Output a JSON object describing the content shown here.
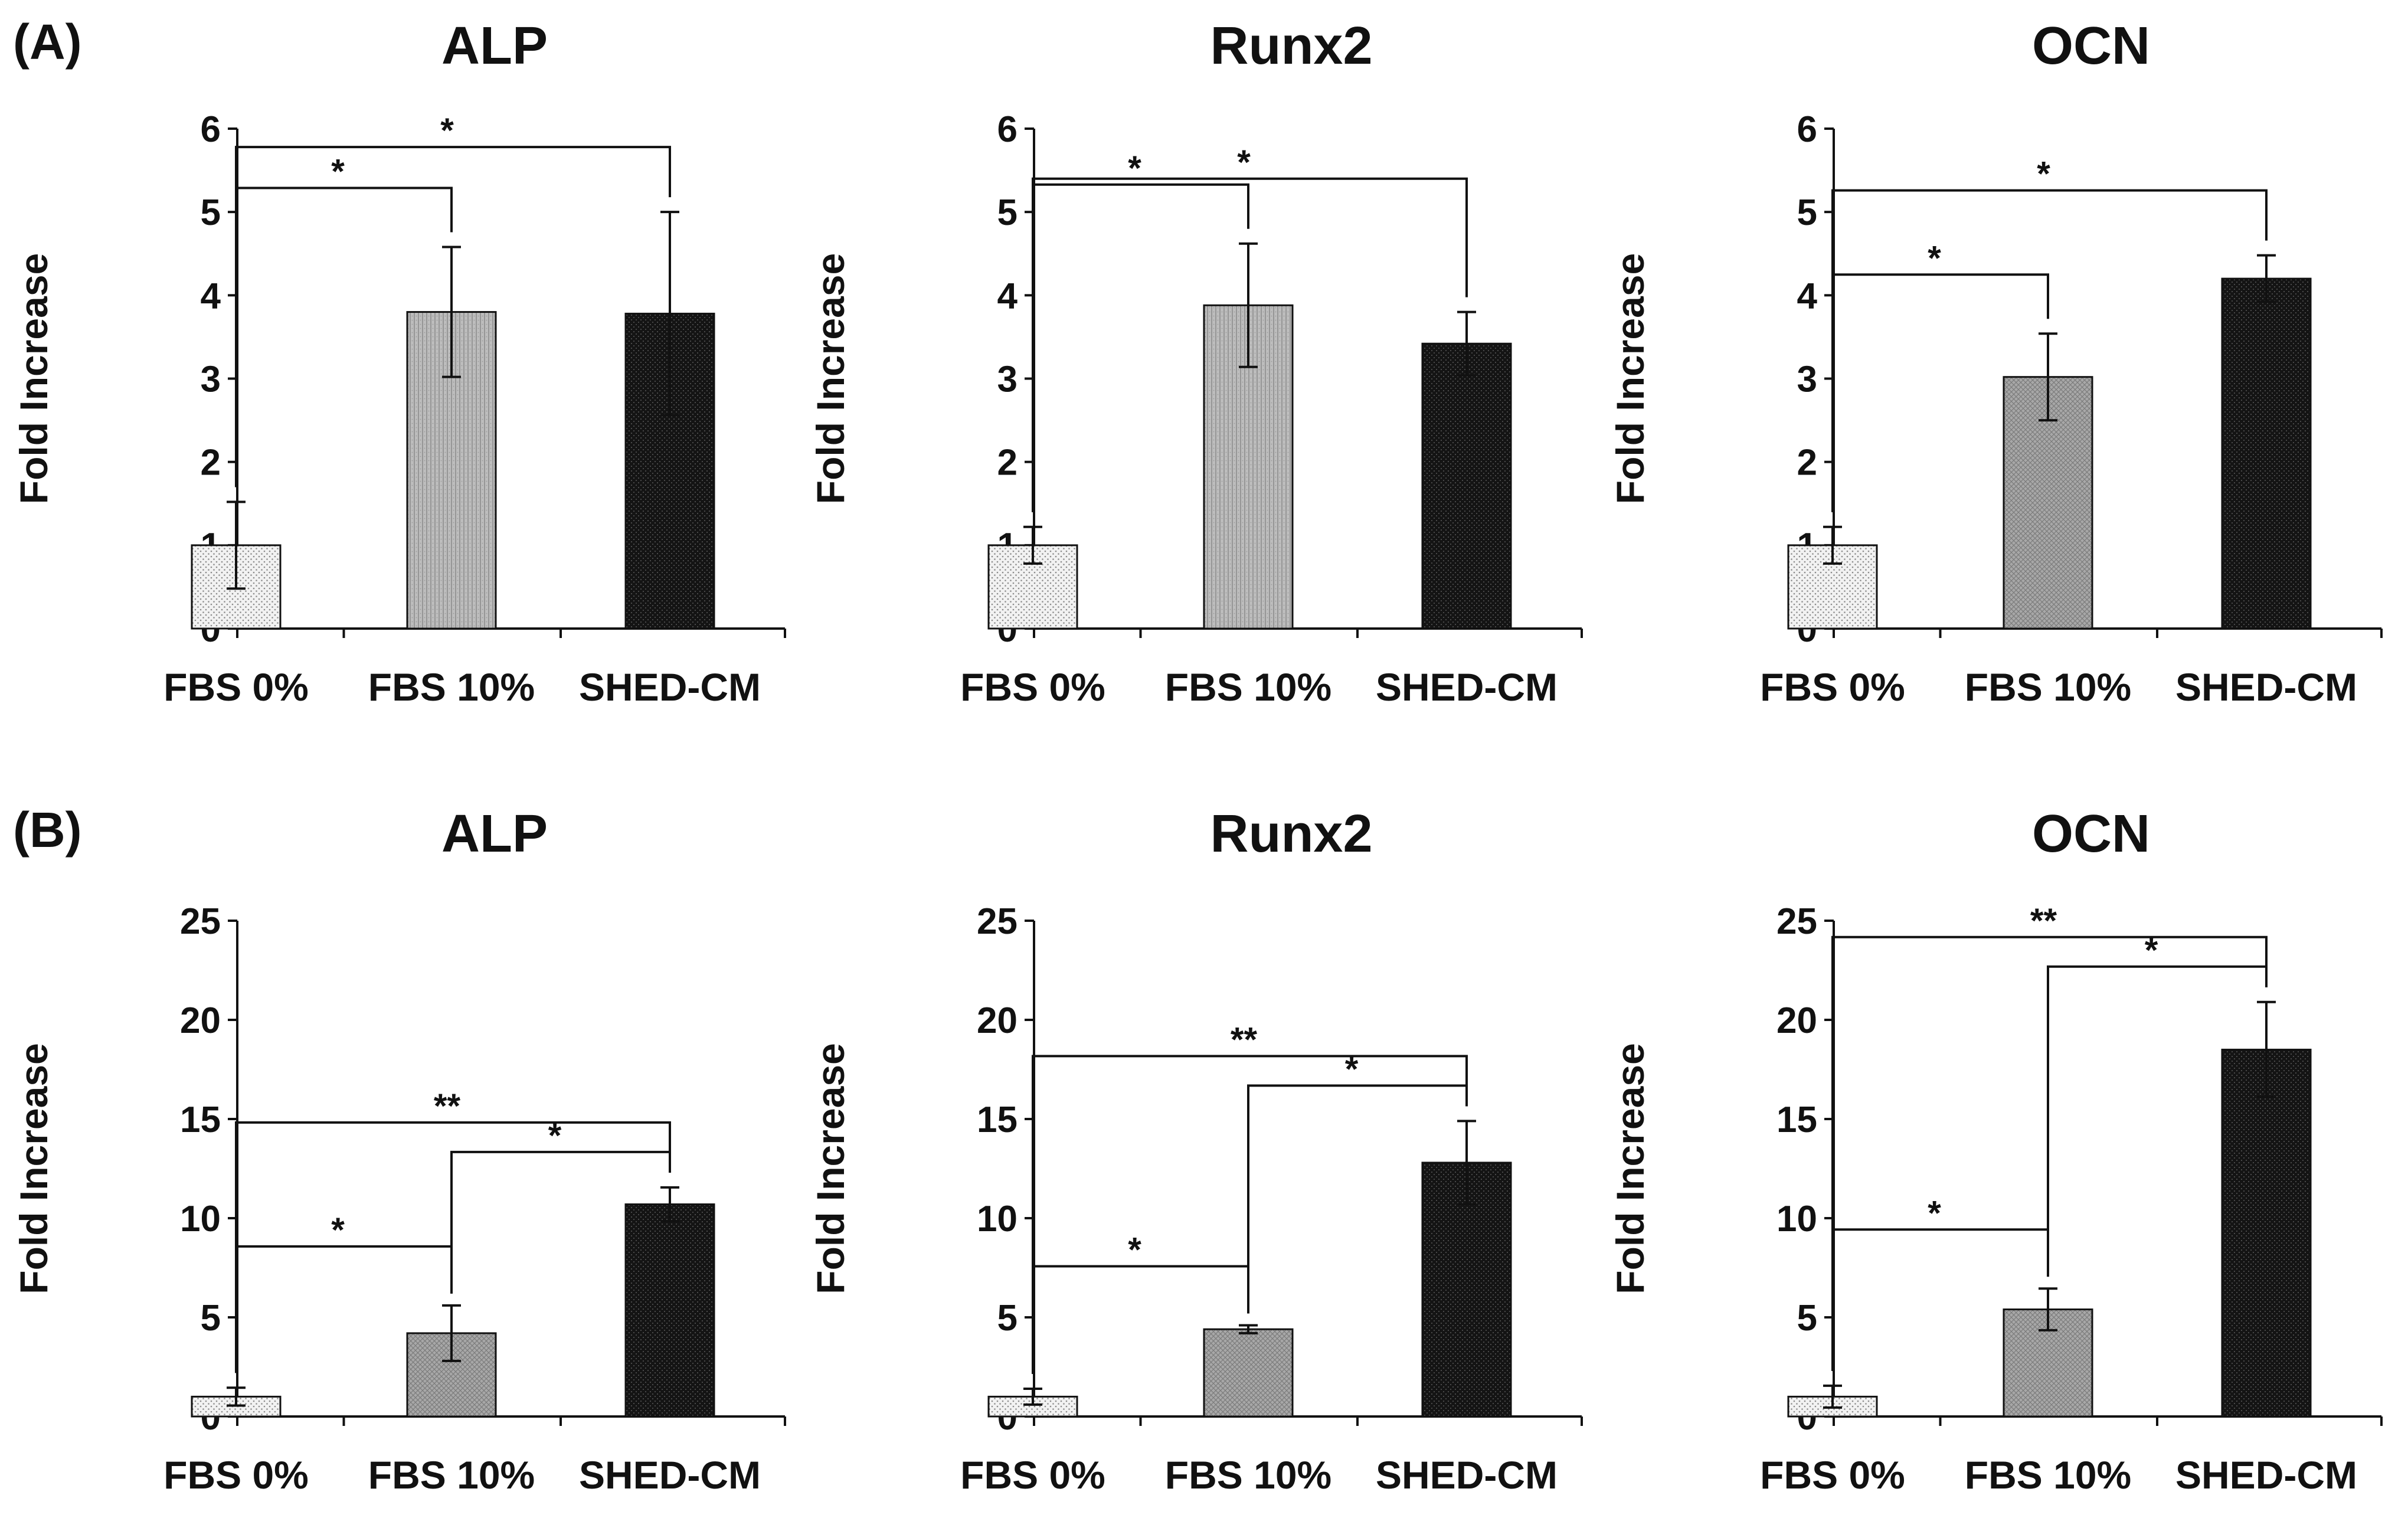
{
  "panels": [
    {
      "label": "(A)"
    },
    {
      "label": "(B)"
    }
  ],
  "chart_data": [
    {
      "type": "bar",
      "panel": "(A)",
      "title": "ALP",
      "xlabel": "",
      "ylabel": "Fold Increase",
      "categories": [
        "FBS 0%",
        "FBS 10%",
        "SHED-CM"
      ],
      "values": [
        1.0,
        3.8,
        3.78
      ],
      "errors": [
        0.52,
        0.78,
        1.22
      ],
      "ylim": [
        0,
        6
      ],
      "yticks": [
        0,
        1,
        2,
        3,
        4,
        5,
        6
      ],
      "bar_fills": [
        "light-dots",
        "gray-lines",
        "black-dots"
      ],
      "significance": [
        {
          "from": 0,
          "to": 1,
          "label": "*"
        },
        {
          "from": 0,
          "to": 2,
          "label": "*"
        }
      ],
      "grid": false
    },
    {
      "type": "bar",
      "panel": "(A)",
      "title": "Runx2",
      "xlabel": "",
      "ylabel": "Fold Increase",
      "categories": [
        "FBS 0%",
        "FBS 10%",
        "SHED-CM"
      ],
      "values": [
        1.0,
        3.88,
        3.42
      ],
      "errors": [
        0.22,
        0.74,
        0.38
      ],
      "ylim": [
        0,
        6
      ],
      "yticks": [
        0,
        1,
        2,
        3,
        4,
        5,
        6
      ],
      "bar_fills": [
        "light-dots",
        "gray-lines",
        "black-dots"
      ],
      "significance": [
        {
          "from": 0,
          "to": 1,
          "label": "*"
        },
        {
          "from": 0,
          "to": 2,
          "label": "*"
        }
      ],
      "grid": false
    },
    {
      "type": "bar",
      "panel": "(A)",
      "title": "OCN",
      "xlabel": "",
      "ylabel": "Fold Increase",
      "categories": [
        "FBS 0%",
        "FBS 10%",
        "SHED-CM"
      ],
      "values": [
        1.0,
        3.02,
        4.2
      ],
      "errors": [
        0.22,
        0.52,
        0.28
      ],
      "ylim": [
        0,
        6
      ],
      "yticks": [
        0,
        1,
        2,
        3,
        4,
        5,
        6
      ],
      "bar_fills": [
        "light-dots",
        "gray-cross",
        "black-dots"
      ],
      "significance": [
        {
          "from": 0,
          "to": 1,
          "label": "*"
        },
        {
          "from": 0,
          "to": 2,
          "label": "*"
        }
      ],
      "grid": false
    },
    {
      "type": "bar",
      "panel": "(B)",
      "title": "ALP",
      "xlabel": "",
      "ylabel": "Fold Increase",
      "categories": [
        "FBS 0%",
        "FBS 10%",
        "SHED-CM"
      ],
      "values": [
        1.0,
        4.2,
        10.7
      ],
      "errors": [
        0.45,
        1.4,
        0.85
      ],
      "ylim": [
        0,
        25
      ],
      "yticks": [
        0,
        5,
        10,
        15,
        20,
        25
      ],
      "bar_fills": [
        "light-dots",
        "gray-cross",
        "black-dots"
      ],
      "significance": [
        {
          "from": 0,
          "to": 1,
          "label": "*"
        },
        {
          "from": 1,
          "to": 2,
          "label": "*"
        },
        {
          "from": 0,
          "to": 2,
          "label": "**"
        }
      ],
      "grid": false
    },
    {
      "type": "bar",
      "panel": "(B)",
      "title": "Runx2",
      "xlabel": "",
      "ylabel": "Fold Increase",
      "categories": [
        "FBS 0%",
        "FBS 10%",
        "SHED-CM"
      ],
      "values": [
        1.0,
        4.4,
        12.8
      ],
      "errors": [
        0.4,
        0.2,
        2.1
      ],
      "ylim": [
        0,
        25
      ],
      "yticks": [
        0,
        5,
        10,
        15,
        20,
        25
      ],
      "bar_fills": [
        "light-dots",
        "gray-cross",
        "black-dots"
      ],
      "significance": [
        {
          "from": 0,
          "to": 1,
          "label": "*"
        },
        {
          "from": 1,
          "to": 2,
          "label": "*"
        },
        {
          "from": 0,
          "to": 2,
          "label": "**"
        }
      ],
      "grid": false
    },
    {
      "type": "bar",
      "panel": "(B)",
      "title": "OCN",
      "xlabel": "",
      "ylabel": "Fold Increase",
      "categories": [
        "FBS 0%",
        "FBS 10%",
        "SHED-CM"
      ],
      "values": [
        1.0,
        5.4,
        18.5
      ],
      "errors": [
        0.55,
        1.05,
        2.4
      ],
      "ylim": [
        0,
        25
      ],
      "yticks": [
        0,
        5,
        10,
        15,
        20,
        25
      ],
      "bar_fills": [
        "light-dots",
        "gray-cross",
        "black-dots"
      ],
      "significance": [
        {
          "from": 0,
          "to": 1,
          "label": "*"
        },
        {
          "from": 1,
          "to": 2,
          "label": "*"
        },
        {
          "from": 0,
          "to": 2,
          "label": "**"
        }
      ],
      "grid": false
    }
  ]
}
